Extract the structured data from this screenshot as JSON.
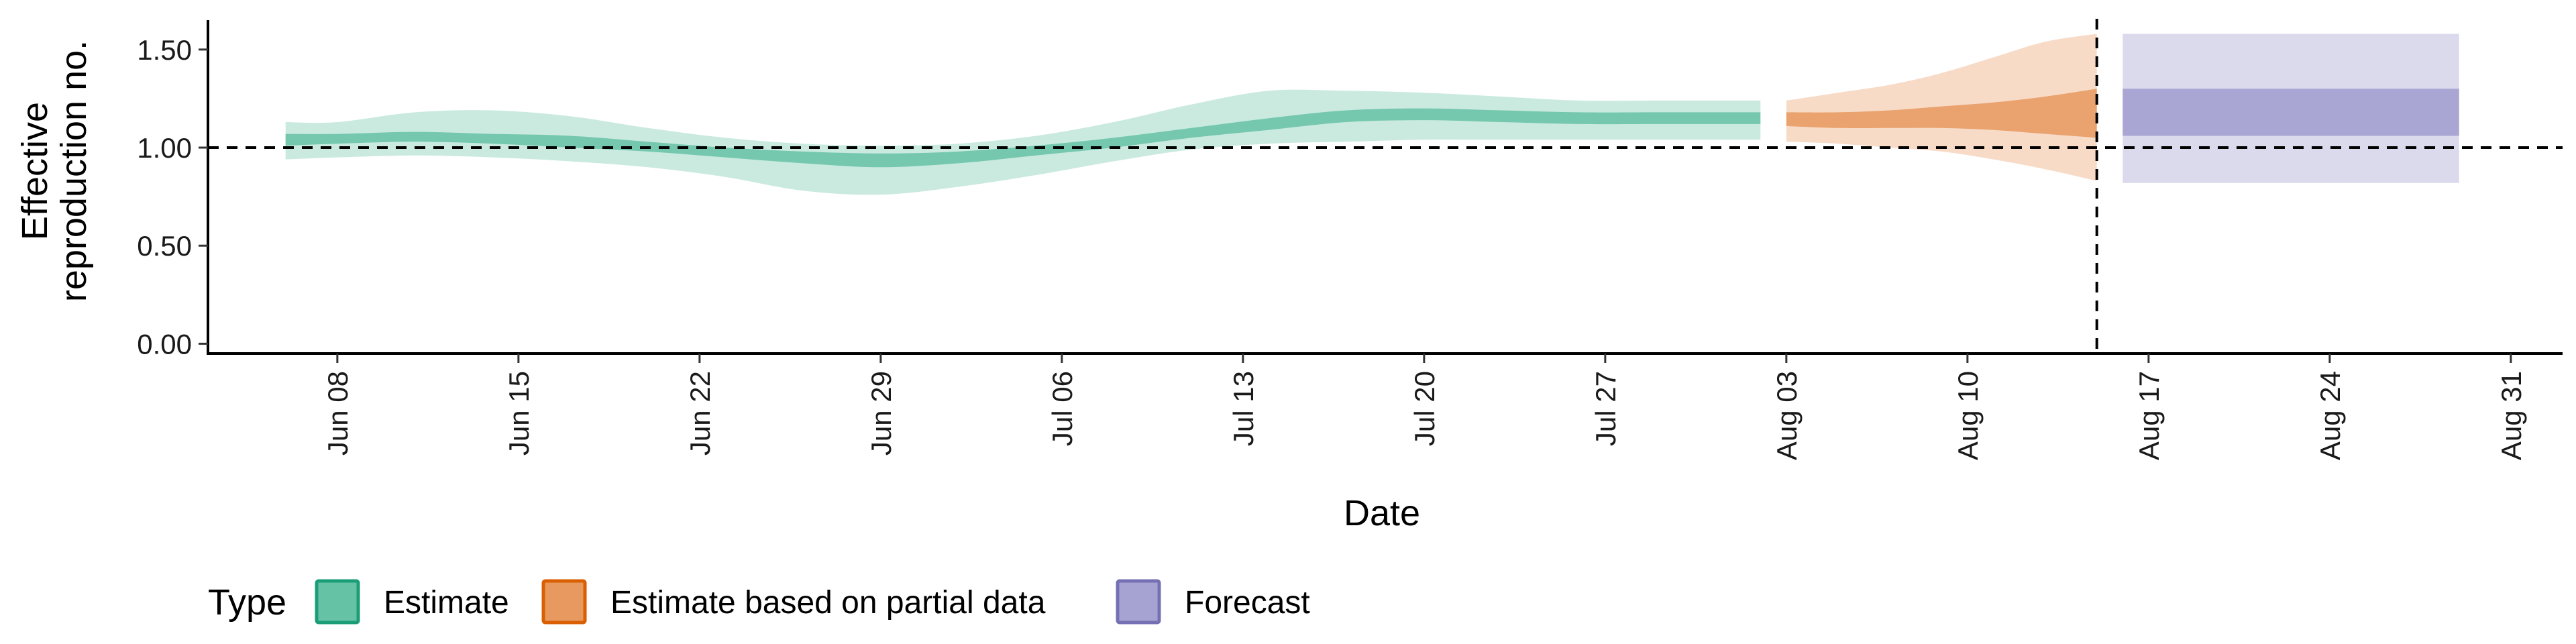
{
  "chart_data": {
    "type": "area",
    "xlabel": "Date",
    "ylabel_lines": [
      "Effective",
      "reproduction no."
    ],
    "date_range": [
      "2020-06-03",
      "2020-09-02"
    ],
    "ylim": [
      -0.05,
      1.65
    ],
    "y_ticks": [
      {
        "value": 0.0,
        "label": "0.00"
      },
      {
        "value": 0.5,
        "label": "0.50"
      },
      {
        "value": 1.0,
        "label": "1.00"
      },
      {
        "value": 1.5,
        "label": "1.50"
      }
    ],
    "x_ticks": [
      {
        "date": "2020-06-08",
        "label": "Jun 08"
      },
      {
        "date": "2020-06-15",
        "label": "Jun 15"
      },
      {
        "date": "2020-06-22",
        "label": "Jun 22"
      },
      {
        "date": "2020-06-29",
        "label": "Jun 29"
      },
      {
        "date": "2020-07-06",
        "label": "Jul 06"
      },
      {
        "date": "2020-07-13",
        "label": "Jul 13"
      },
      {
        "date": "2020-07-20",
        "label": "Jul 20"
      },
      {
        "date": "2020-07-27",
        "label": "Jul 27"
      },
      {
        "date": "2020-08-03",
        "label": "Aug 03"
      },
      {
        "date": "2020-08-10",
        "label": "Aug 10"
      },
      {
        "date": "2020-08-17",
        "label": "Aug 17"
      },
      {
        "date": "2020-08-24",
        "label": "Aug 24"
      },
      {
        "date": "2020-08-31",
        "label": "Aug 31"
      }
    ],
    "hline": 1.0,
    "vline_date": "2020-08-15",
    "grid": false,
    "legend": {
      "title": "Type",
      "placement": "bottom",
      "entries": [
        {
          "label": "Estimate",
          "color": "#66c2a5",
          "border": "#1b9e77"
        },
        {
          "label": "Estimate based on partial data",
          "color": "#e8995f",
          "border": "#d95f02"
        },
        {
          "label": "Forecast",
          "color": "#a6a3d3",
          "border": "#7570b3"
        }
      ]
    },
    "series": [
      {
        "name": "Estimate",
        "color": "#66c2a5",
        "outer_alpha": 0.35,
        "inner_alpha": 0.85,
        "points": [
          {
            "x": "2020-06-06",
            "lo90": 0.94,
            "lo50": 1.01,
            "hi50": 1.07,
            "hi90": 1.13
          },
          {
            "x": "2020-06-08",
            "lo90": 0.95,
            "lo50": 1.02,
            "hi50": 1.07,
            "hi90": 1.13
          },
          {
            "x": "2020-06-11",
            "lo90": 0.96,
            "lo50": 1.03,
            "hi50": 1.08,
            "hi90": 1.18
          },
          {
            "x": "2020-06-14",
            "lo90": 0.95,
            "lo50": 1.02,
            "hi50": 1.07,
            "hi90": 1.19
          },
          {
            "x": "2020-06-17",
            "lo90": 0.93,
            "lo50": 1.0,
            "hi50": 1.06,
            "hi90": 1.16
          },
          {
            "x": "2020-06-20",
            "lo90": 0.9,
            "lo50": 0.98,
            "hi50": 1.03,
            "hi90": 1.1
          },
          {
            "x": "2020-06-23",
            "lo90": 0.85,
            "lo50": 0.95,
            "hi50": 1.0,
            "hi90": 1.05
          },
          {
            "x": "2020-06-26",
            "lo90": 0.78,
            "lo50": 0.92,
            "hi50": 0.98,
            "hi90": 1.02
          },
          {
            "x": "2020-06-29",
            "lo90": 0.76,
            "lo50": 0.9,
            "hi50": 0.97,
            "hi90": 1.01
          },
          {
            "x": "2020-07-02",
            "lo90": 0.8,
            "lo50": 0.92,
            "hi50": 0.98,
            "hi90": 1.02
          },
          {
            "x": "2020-07-05",
            "lo90": 0.86,
            "lo50": 0.96,
            "hi50": 1.01,
            "hi90": 1.06
          },
          {
            "x": "2020-07-08",
            "lo90": 0.93,
            "lo50": 1.0,
            "hi50": 1.05,
            "hi90": 1.13
          },
          {
            "x": "2020-07-11",
            "lo90": 0.99,
            "lo50": 1.05,
            "hi50": 1.1,
            "hi90": 1.22
          },
          {
            "x": "2020-07-14",
            "lo90": 1.02,
            "lo50": 1.09,
            "hi50": 1.15,
            "hi90": 1.29
          },
          {
            "x": "2020-07-17",
            "lo90": 1.03,
            "lo50": 1.13,
            "hi50": 1.19,
            "hi90": 1.29
          },
          {
            "x": "2020-07-20",
            "lo90": 1.04,
            "lo50": 1.14,
            "hi50": 1.2,
            "hi90": 1.28
          },
          {
            "x": "2020-07-23",
            "lo90": 1.04,
            "lo50": 1.13,
            "hi50": 1.19,
            "hi90": 1.26
          },
          {
            "x": "2020-07-26",
            "lo90": 1.04,
            "lo50": 1.12,
            "hi50": 1.18,
            "hi90": 1.24
          },
          {
            "x": "2020-07-29",
            "lo90": 1.04,
            "lo50": 1.12,
            "hi50": 1.18,
            "hi90": 1.24
          },
          {
            "x": "2020-08-02",
            "lo90": 1.04,
            "lo50": 1.12,
            "hi50": 1.18,
            "hi90": 1.24
          }
        ]
      },
      {
        "name": "Estimate based on partial data",
        "color": "#e8995f",
        "outer_alpha": 0.35,
        "inner_alpha": 0.85,
        "points": [
          {
            "x": "2020-08-03",
            "lo90": 1.03,
            "lo50": 1.11,
            "hi50": 1.18,
            "hi90": 1.24
          },
          {
            "x": "2020-08-05",
            "lo90": 1.02,
            "lo50": 1.1,
            "hi50": 1.18,
            "hi90": 1.28
          },
          {
            "x": "2020-08-07",
            "lo90": 1.0,
            "lo50": 1.1,
            "hi50": 1.19,
            "hi90": 1.32
          },
          {
            "x": "2020-08-09",
            "lo90": 0.98,
            "lo50": 1.1,
            "hi50": 1.21,
            "hi90": 1.38
          },
          {
            "x": "2020-08-11",
            "lo90": 0.94,
            "lo50": 1.09,
            "hi50": 1.23,
            "hi90": 1.46
          },
          {
            "x": "2020-08-13",
            "lo90": 0.89,
            "lo50": 1.07,
            "hi50": 1.26,
            "hi90": 1.54
          },
          {
            "x": "2020-08-15",
            "lo90": 0.83,
            "lo50": 1.05,
            "hi50": 1.3,
            "hi90": 1.58
          }
        ]
      },
      {
        "name": "Forecast",
        "color": "#a6a3d3",
        "outer_alpha": 0.4,
        "inner_alpha": 0.95,
        "points": [
          {
            "x": "2020-08-16",
            "lo90": 0.82,
            "lo50": 1.06,
            "hi50": 1.3,
            "hi90": 1.58
          },
          {
            "x": "2020-08-29",
            "lo90": 0.82,
            "lo50": 1.06,
            "hi50": 1.3,
            "hi90": 1.58
          }
        ]
      }
    ]
  }
}
